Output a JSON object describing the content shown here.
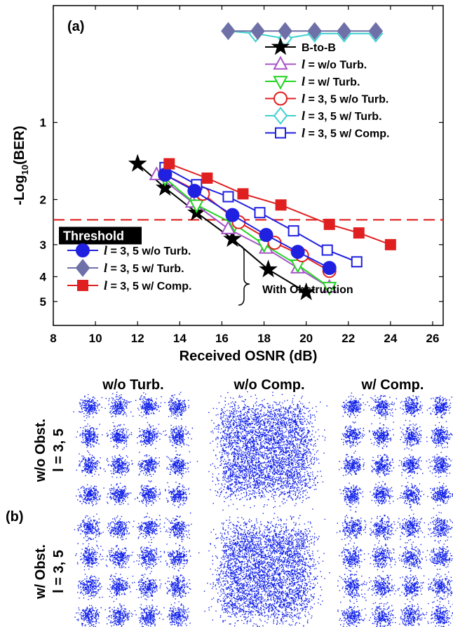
{
  "chart_data": {
    "type": "line",
    "panel_label": "(a)",
    "xlabel": "Received OSNR (dB)",
    "ylabel_main": "-Log",
    "ylabel_sub": "10",
    "ylabel_tail": "(BER)",
    "xlim": [
      8,
      26.5
    ],
    "ylim": [
      0.35,
      6.2
    ],
    "y_scale": "log",
    "xticks": [
      8,
      10,
      12,
      14,
      16,
      18,
      20,
      22,
      24,
      26
    ],
    "yticks": [
      1,
      2,
      3,
      4,
      5
    ],
    "threshold": {
      "label": "Threshold",
      "value": 2.4,
      "color": "#e02020"
    },
    "series": [
      {
        "name": "B-to-B",
        "color": "#000000",
        "marker": "star",
        "filled": true,
        "legend": "top",
        "x": [
          12.0,
          13.3,
          14.8,
          16.5,
          18.2,
          20.0
        ],
        "y": [
          1.45,
          1.8,
          2.25,
          2.85,
          3.75,
          4.6
        ]
      },
      {
        "name": "w/o Turb.",
        "color": "#a855c8",
        "marker": "triangle-up",
        "filled": false,
        "legend": "top",
        "x": [
          12.9,
          14.6,
          16.3,
          18.1,
          19.6,
          21.1
        ],
        "y": [
          1.6,
          2.05,
          2.6,
          3.1,
          3.7,
          4.4
        ]
      },
      {
        "name": "w/ Turb.",
        "color": "#22d422",
        "marker": "triangle-down",
        "filled": false,
        "legend": "top",
        "x": [
          13.3,
          14.8,
          16.6,
          18.0,
          19.6,
          21.1
        ],
        "y": [
          1.65,
          2.1,
          2.5,
          3.0,
          3.6,
          4.4
        ]
      },
      {
        "name": "3, 5 w/o Turb.",
        "color": "#e02020",
        "marker": "circle",
        "filled": false,
        "legend": "top",
        "x": [
          13.3,
          15.1,
          16.8,
          18.5,
          19.8,
          21.1
        ],
        "y": [
          1.6,
          1.9,
          2.45,
          2.95,
          3.3,
          3.8
        ]
      },
      {
        "name": "3, 5 w/ Turb.",
        "color": "#40d0d0",
        "marker": "diamond",
        "filled": false,
        "legend": "top",
        "x": [
          16.3,
          17.6,
          19.0,
          20.4,
          21.8,
          23.3
        ],
        "y": [
          0.44,
          0.45,
          0.47,
          0.45,
          0.45,
          0.45
        ]
      },
      {
        "name": "3, 5 w/ Comp.",
        "color": "#2020e0",
        "marker": "square",
        "filled": false,
        "legend": "top",
        "x": [
          13.3,
          14.8,
          16.3,
          17.8,
          19.4,
          21.0,
          22.4
        ],
        "y": [
          1.5,
          1.75,
          1.95,
          2.25,
          2.65,
          3.15,
          3.5
        ]
      },
      {
        "name": "3, 5 w/o Turb.",
        "color": "#2020e0",
        "marker": "circle",
        "filled": true,
        "legend": "bottom",
        "x": [
          13.3,
          14.7,
          16.5,
          18.1,
          19.6,
          21.1
        ],
        "y": [
          1.6,
          1.85,
          2.3,
          2.75,
          3.2,
          3.7
        ]
      },
      {
        "name": "3, 5 w/ Turb.",
        "color": "#7070a8",
        "marker": "diamond",
        "filled": true,
        "legend": "bottom",
        "x": [
          16.3,
          17.7,
          19.0,
          20.4,
          21.8,
          23.3
        ],
        "y": [
          0.44,
          0.44,
          0.44,
          0.44,
          0.44,
          0.44
        ]
      },
      {
        "name": "3, 5 w/ Comp.",
        "color": "#e02020",
        "marker": "square",
        "filled": true,
        "legend": "bottom",
        "x": [
          13.5,
          15.3,
          17.0,
          18.8,
          21.1,
          22.5,
          24.0
        ],
        "y": [
          1.45,
          1.65,
          1.9,
          2.1,
          2.5,
          2.7,
          3.0
        ]
      }
    ],
    "legend_top_position": "top-right",
    "legend_bottom_position": "bottom-left",
    "brace_label": "With Obstruction"
  },
  "panel_b": {
    "panel_label": "(b)",
    "col_headers": [
      "w/o Turb.",
      "w/o Comp.",
      "w/ Comp."
    ],
    "row_labels": [
      {
        "line1": "w/o Obst.",
        "line2": "l = 3, 5"
      },
      {
        "line1": "w/ Obst.",
        "line2": "l = 3, 5"
      }
    ],
    "dot_color": "#1020e8"
  }
}
